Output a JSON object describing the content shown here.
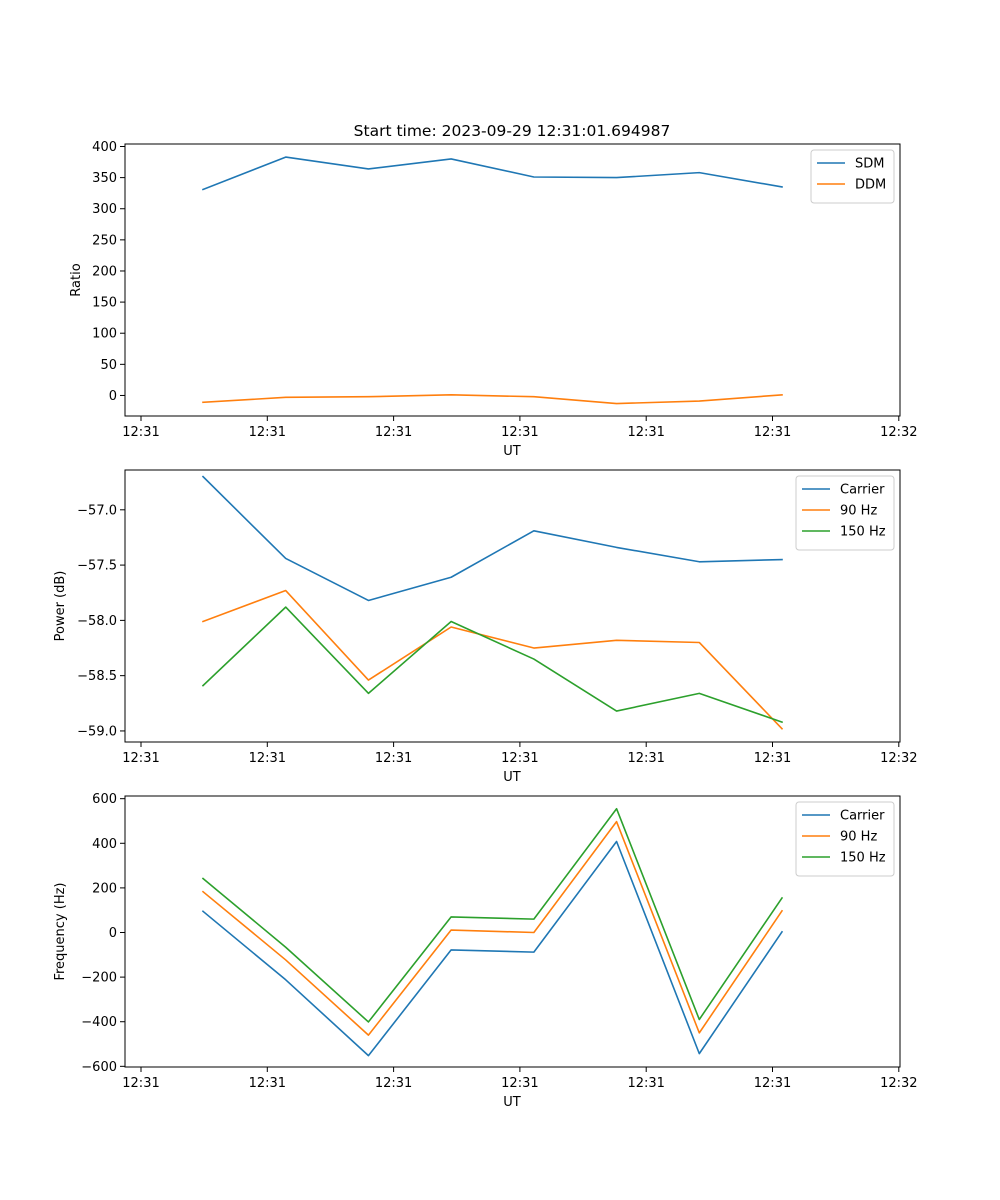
{
  "figure_title": "Start time: 2023-09-29 12:31:01.694987",
  "chart_data": [
    {
      "type": "line",
      "title": "Start time: 2023-09-29 12:31:01.694987",
      "xlabel": "UT",
      "ylabel": "Ratio",
      "x_ticks": [
        "12:31",
        "12:31",
        "12:31",
        "12:31",
        "12:31",
        "12:31",
        "12:32"
      ],
      "y_ticks": [
        0,
        50,
        100,
        150,
        200,
        250,
        300,
        350,
        400
      ],
      "ylim": [
        -33,
        404
      ],
      "legend_location": "top-right",
      "grid": false,
      "series": [
        {
          "name": "SDM",
          "color": "#1f77b4",
          "values": [
            331,
            383,
            364,
            380,
            351,
            350,
            358,
            335
          ]
        },
        {
          "name": "DDM",
          "color": "#ff7f0e",
          "values": [
            -11,
            -3,
            -2,
            1,
            -2,
            -13,
            -9,
            1
          ]
        }
      ]
    },
    {
      "type": "line",
      "title": "",
      "xlabel": "UT",
      "ylabel": "Power (dB)",
      "x_ticks": [
        "12:31",
        "12:31",
        "12:31",
        "12:31",
        "12:31",
        "12:31",
        "12:32"
      ],
      "y_ticks": [
        -59.0,
        -58.5,
        -58.0,
        -57.5,
        -57.0
      ],
      "ylim": [
        -59.1,
        -56.64
      ],
      "legend_location": "top-right",
      "grid": false,
      "series": [
        {
          "name": "Carrier",
          "color": "#1f77b4",
          "values": [
            -56.7,
            -57.44,
            -57.82,
            -57.61,
            -57.19,
            -57.34,
            -57.47,
            -57.45
          ]
        },
        {
          "name": "90 Hz",
          "color": "#ff7f0e",
          "values": [
            -58.01,
            -57.73,
            -58.54,
            -58.06,
            -58.25,
            -58.18,
            -58.2,
            -58.98
          ]
        },
        {
          "name": "150 Hz",
          "color": "#2ca02c",
          "values": [
            -58.59,
            -57.88,
            -58.66,
            -58.01,
            -58.35,
            -58.82,
            -58.66,
            -58.92
          ]
        }
      ]
    },
    {
      "type": "line",
      "title": "",
      "xlabel": "UT",
      "ylabel": "Frequency (Hz)",
      "x_ticks": [
        "12:31",
        "12:31",
        "12:31",
        "12:31",
        "12:31",
        "12:31",
        "12:32"
      ],
      "y_ticks": [
        -600,
        -400,
        -200,
        0,
        200,
        400,
        600
      ],
      "ylim": [
        -603,
        612
      ],
      "legend_location": "top-right",
      "grid": false,
      "series": [
        {
          "name": "Carrier",
          "color": "#1f77b4",
          "values": [
            95,
            -212,
            -552,
            -78,
            -88,
            408,
            -543,
            3
          ]
        },
        {
          "name": "90 Hz",
          "color": "#ff7f0e",
          "values": [
            183,
            -123,
            -460,
            11,
            0,
            497,
            -450,
            97
          ]
        },
        {
          "name": "150 Hz",
          "color": "#2ca02c",
          "values": [
            242,
            -66,
            -401,
            70,
            60,
            555,
            -390,
            155
          ]
        }
      ]
    }
  ]
}
